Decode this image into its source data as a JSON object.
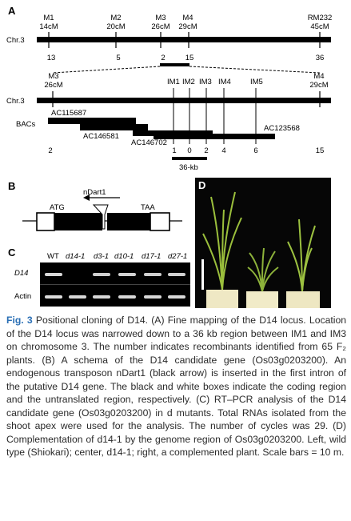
{
  "panel_a": {
    "letter": "A",
    "chromosome_label": "Chr.3",
    "top_markers": [
      {
        "name": "M1",
        "pos": "14cM",
        "recomb": "13"
      },
      {
        "name": "M2",
        "pos": "20cM",
        "recomb": "5"
      },
      {
        "name": "M3",
        "pos": "26cM",
        "recomb": "2"
      },
      {
        "name": "M4",
        "pos": "29cM",
        "recomb": "15"
      },
      {
        "name": "RM232",
        "pos": "45cM",
        "recomb": "36"
      }
    ],
    "zoom_markers": {
      "left": {
        "name": "M3",
        "pos": "26cM"
      },
      "right": {
        "name": "M4",
        "pos": "29cM"
      },
      "inner": [
        "IM1",
        "IM2",
        "IM3",
        "IM4",
        "IM5"
      ]
    },
    "zoom_chromosome_label": "Chr.3",
    "bacs_label": "BACs",
    "bacs": [
      "AC115687",
      "AC146581",
      "AC146702",
      "AC123568"
    ],
    "zoom_recomb": [
      "2",
      "1",
      "0",
      "2",
      "4",
      "6",
      "15"
    ],
    "region_label": "36-kb"
  },
  "panel_b": {
    "letter": "B",
    "start_codon": "ATG",
    "stop_codon": "TAA",
    "transposon": "nDart1"
  },
  "panel_c": {
    "letter": "C",
    "lanes": [
      "WT",
      "d14-1",
      "d3-1",
      "d10-1",
      "d17-1",
      "d27-1"
    ],
    "rows": [
      "D14",
      "Actin"
    ]
  },
  "panel_d": {
    "letter": "D"
  },
  "caption": {
    "figure_label": "Fig. 3",
    "text": " Positional cloning of D14. (A) Fine mapping of the D14 locus. Location of the D14 locus was narrowed down to a 36 kb region between IM1 and IM3 on chromosome 3. The number indicates recombinants identified from 65 F₂ plants. (B) A schema of the D14 candidate gene (Os03g0203200). An endogenous transposon nDart1 (black arrow) is inserted in the first intron of the putative D14 gene. The black and white boxes indicate the coding region and the untranslated region, respectively. (C) RT–PCR analysis of the D14 candidate gene (Os03g0203200) in d mutants. Total RNAs isolated from the shoot apex were used for the analysis. The number of cycles was 29. (D) Complementation of d14-1 by the genome region of Os03g0203200. Left, wild type (Shiokari); center, d14-1; right, a complemented plant. Scale bars = 10 m."
  }
}
